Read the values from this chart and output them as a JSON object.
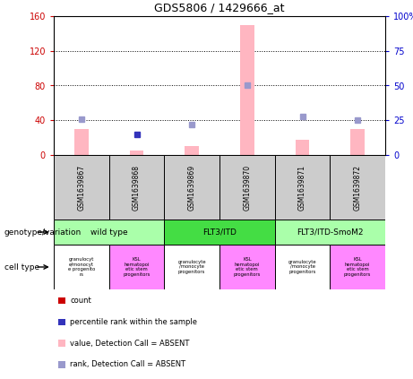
{
  "title": "GDS5806 / 1429666_at",
  "samples": [
    "GSM1639867",
    "GSM1639868",
    "GSM1639869",
    "GSM1639870",
    "GSM1639871",
    "GSM1639872"
  ],
  "bar_values_absent": [
    30,
    5,
    10,
    150,
    18,
    30
  ],
  "rank_dots_blue": [
    null,
    15,
    null,
    null,
    null,
    null
  ],
  "rank_dots_absent": [
    26,
    null,
    22,
    50,
    28,
    25
  ],
  "ylim_left": [
    0,
    160
  ],
  "ylim_right": [
    0,
    100
  ],
  "yticks_left": [
    0,
    40,
    80,
    120,
    160
  ],
  "yticks_right": [
    0,
    25,
    50,
    75,
    100
  ],
  "bar_color_absent": "#FFB6C1",
  "dot_color_blue": "#3333BB",
  "dot_color_absent": "#9999CC",
  "left_axis_color": "#CC0000",
  "right_axis_color": "#0000CC",
  "sample_bg_color": "#CCCCCC",
  "genotype_groups": [
    {
      "label": "wild type",
      "start": 0,
      "end": 2,
      "color": "#AAFFAA"
    },
    {
      "label": "FLT3/ITD",
      "start": 2,
      "end": 4,
      "color": "#44DD44"
    },
    {
      "label": "FLT3/ITD-SmoM2",
      "start": 4,
      "end": 6,
      "color": "#AAFFAA"
    }
  ],
  "cell_type_colors": [
    "#FFFFFF",
    "#FF88FF",
    "#FFFFFF",
    "#FF88FF",
    "#FFFFFF",
    "#FF88FF"
  ],
  "cell_texts": [
    "granulocyt\ne/monocyt\ne progenito\nrs",
    "KSL\nhematopoi\netic stem\nprogenitors",
    "granulocyte\n/monocyte\nprogenitors",
    "KSL\nhematopoi\netic stem\nprogenitors",
    "granulocyte\n/monocyte\nprogenitors",
    "KSL\nhematopoi\netic stem\nprogenitors"
  ],
  "legend_items": [
    {
      "label": "count",
      "color": "#CC0000"
    },
    {
      "label": "percentile rank within the sample",
      "color": "#3333BB"
    },
    {
      "label": "value, Detection Call = ABSENT",
      "color": "#FFB6C1"
    },
    {
      "label": "rank, Detection Call = ABSENT",
      "color": "#9999CC"
    }
  ],
  "label_genotype": "genotype/variation",
  "label_celltype": "cell type"
}
